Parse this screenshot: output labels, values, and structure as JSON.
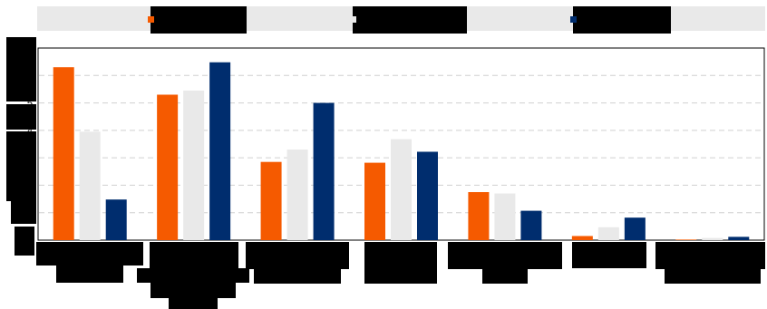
{
  "chart_data": {
    "type": "bar",
    "title": "",
    "xlabel": "",
    "ylabel": "",
    "ylim": [
      0,
      7
    ],
    "yticks": [
      0,
      1,
      2,
      3,
      4,
      5,
      6,
      7
    ],
    "grid": true,
    "legend_position": "top",
    "categories": [
      "",
      "",
      "",
      "",
      "",
      "",
      ""
    ],
    "series": [
      {
        "name": "",
        "color": "#f55a00",
        "values": [
          6.3,
          5.3,
          2.85,
          2.82,
          1.75,
          0.15,
          0.02
        ]
      },
      {
        "name": "",
        "color": "#e9e9e9",
        "values": [
          3.95,
          5.45,
          3.3,
          3.68,
          1.7,
          0.47,
          0.08
        ]
      },
      {
        "name": "",
        "color": "#002d6e",
        "values": [
          1.48,
          6.48,
          5.0,
          3.22,
          1.07,
          0.82,
          0.12
        ]
      }
    ]
  }
}
